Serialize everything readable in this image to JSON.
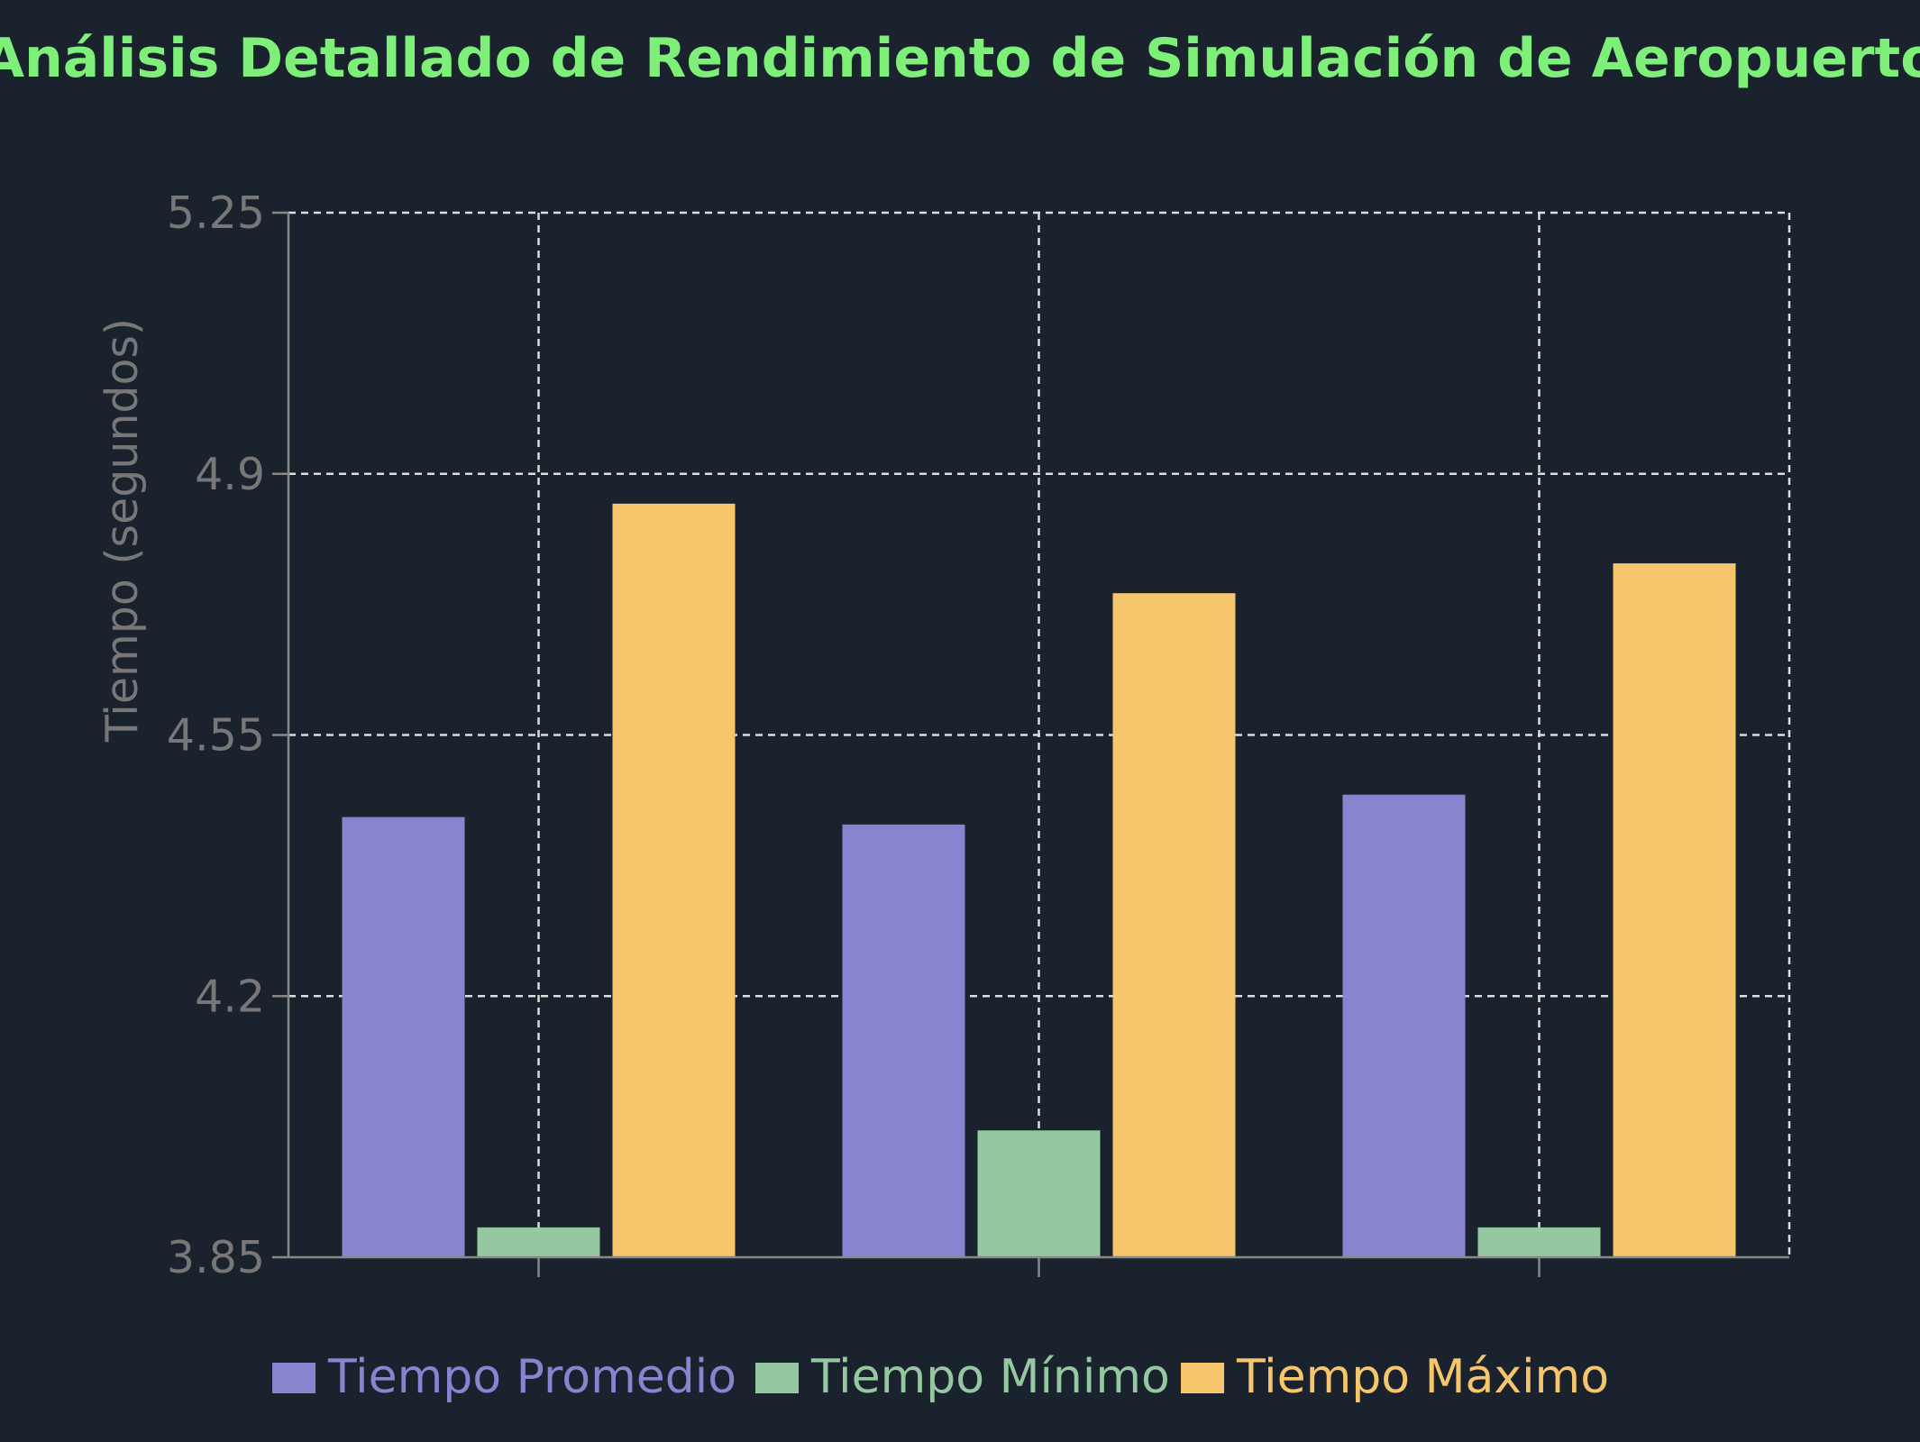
{
  "chart_data": {
    "type": "bar",
    "title": "Análisis Detallado de Rendimiento de Simulación de Aeropuerto",
    "xlabel": "",
    "ylabel": "Tiempo (segundos)",
    "ylim": [
      3.85,
      5.25
    ],
    "yticks": [
      "3.85",
      "4.2",
      "4.55",
      "4.9",
      "5.25"
    ],
    "categories": [
      "",
      "",
      ""
    ],
    "series": [
      {
        "name": "Tiempo Promedio",
        "values": [
          4.44,
          4.43,
          4.47
        ],
        "color": "#8884d0"
      },
      {
        "name": "Tiempo Mínimo",
        "values": [
          3.89,
          4.02,
          3.89
        ],
        "color": "#95c8a0"
      },
      {
        "name": "Tiempo Máximo",
        "values": [
          4.86,
          4.74,
          4.78
        ],
        "color": "#f6c66c"
      }
    ],
    "grid": true,
    "legend_position": "bottom-center"
  },
  "colors": {
    "background": "#1a222d",
    "title": "#7ef07a",
    "axis_text": "#777777",
    "grid": "#dddddd"
  }
}
